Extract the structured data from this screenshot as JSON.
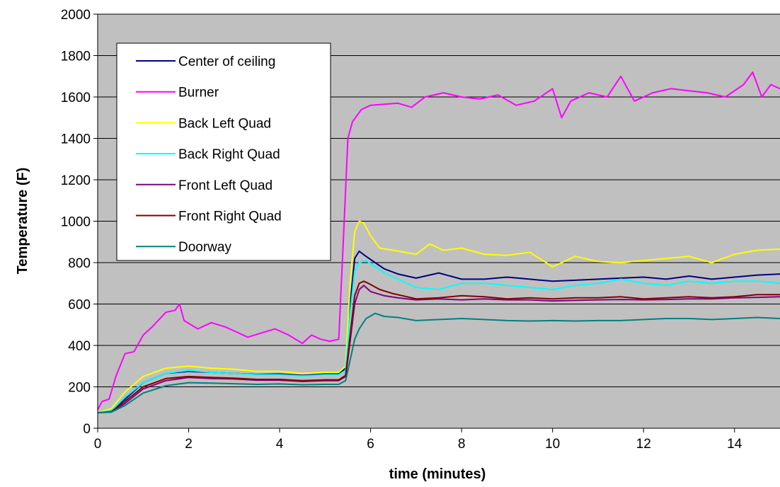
{
  "chart_data": {
    "type": "line",
    "title": "",
    "xlabel": "time (minutes)",
    "ylabel": "Temperature (F)",
    "xlim": [
      0,
      15
    ],
    "ylim": [
      0,
      2000
    ],
    "xticks": [
      "0",
      "2",
      "4",
      "6",
      "8",
      "10",
      "12",
      "14"
    ],
    "yticks": [
      "0",
      "200",
      "400",
      "600",
      "800",
      "1000",
      "1200",
      "1400",
      "1600",
      "1800",
      "2000"
    ],
    "grid": "horizontal",
    "legend_position": "top-left",
    "plot_background": "#c0c0c0",
    "series": [
      {
        "name": "Center of ceiling",
        "color": "#000080",
        "x": [
          0,
          0.3,
          0.6,
          1.0,
          1.5,
          2.0,
          2.5,
          3.0,
          3.5,
          4.0,
          4.5,
          5.0,
          5.3,
          5.45,
          5.55,
          5.65,
          5.75,
          5.9,
          6.1,
          6.3,
          6.6,
          7.0,
          7.5,
          8.0,
          8.5,
          9.0,
          9.5,
          10.0,
          10.5,
          11.0,
          11.5,
          12.0,
          12.5,
          13.0,
          13.5,
          14.0,
          14.5,
          15.0
        ],
        "y": [
          75,
          85,
          140,
          220,
          265,
          275,
          270,
          265,
          260,
          262,
          255,
          262,
          262,
          290,
          600,
          820,
          855,
          830,
          800,
          770,
          745,
          725,
          750,
          720,
          720,
          730,
          720,
          710,
          715,
          720,
          725,
          730,
          720,
          735,
          720,
          730,
          740,
          745
        ]
      },
      {
        "name": "Burner",
        "color": "#ff00ff",
        "x": [
          0,
          0.1,
          0.25,
          0.4,
          0.6,
          0.8,
          1.0,
          1.2,
          1.5,
          1.7,
          1.8,
          1.9,
          2.2,
          2.5,
          2.8,
          3.0,
          3.3,
          3.6,
          3.9,
          4.2,
          4.5,
          4.7,
          4.9,
          5.1,
          5.3,
          5.4,
          5.5,
          5.6,
          5.8,
          6.0,
          6.3,
          6.6,
          6.9,
          7.2,
          7.6,
          8.0,
          8.4,
          8.8,
          9.2,
          9.6,
          10.0,
          10.2,
          10.4,
          10.8,
          11.2,
          11.5,
          11.8,
          12.2,
          12.6,
          13.0,
          13.4,
          13.8,
          14.2,
          14.4,
          14.6,
          14.8,
          15.0
        ],
        "y": [
          90,
          130,
          140,
          250,
          360,
          370,
          450,
          490,
          560,
          570,
          600,
          520,
          480,
          510,
          490,
          470,
          440,
          460,
          480,
          450,
          410,
          450,
          430,
          420,
          430,
          900,
          1400,
          1480,
          1540,
          1560,
          1565,
          1570,
          1550,
          1600,
          1620,
          1600,
          1590,
          1610,
          1560,
          1580,
          1640,
          1500,
          1580,
          1620,
          1600,
          1700,
          1580,
          1620,
          1640,
          1630,
          1620,
          1600,
          1660,
          1720,
          1600,
          1660,
          1640
        ]
      },
      {
        "name": "Back Left Quad",
        "color": "#ffff00",
        "x": [
          0,
          0.3,
          0.6,
          1.0,
          1.5,
          2.0,
          2.5,
          3.0,
          3.5,
          4.0,
          4.5,
          5.0,
          5.3,
          5.45,
          5.55,
          5.65,
          5.75,
          5.85,
          6.0,
          6.2,
          6.5,
          7.0,
          7.3,
          7.6,
          8.0,
          8.5,
          9.0,
          9.5,
          10.0,
          10.5,
          11.0,
          11.5,
          12.0,
          12.5,
          13.0,
          13.5,
          14.0,
          14.5,
          15.0
        ],
        "y": [
          75,
          95,
          175,
          250,
          290,
          300,
          290,
          285,
          275,
          275,
          265,
          270,
          270,
          300,
          700,
          950,
          1000,
          990,
          930,
          870,
          860,
          840,
          890,
          860,
          870,
          840,
          835,
          850,
          780,
          830,
          805,
          800,
          810,
          820,
          830,
          800,
          840,
          860,
          865
        ]
      },
      {
        "name": "Back Right Quad",
        "color": "#00ffff",
        "x": [
          0,
          0.3,
          0.6,
          1.0,
          1.5,
          2.0,
          2.5,
          3.0,
          3.5,
          4.0,
          4.5,
          5.0,
          5.3,
          5.45,
          5.55,
          5.65,
          5.75,
          5.9,
          6.1,
          6.3,
          6.6,
          7.0,
          7.5,
          8.0,
          8.5,
          9.0,
          9.5,
          10.0,
          10.5,
          11.0,
          11.5,
          12.0,
          12.5,
          13.0,
          13.5,
          14.0,
          14.5,
          15.0
        ],
        "y": [
          75,
          85,
          150,
          220,
          265,
          280,
          270,
          265,
          258,
          258,
          252,
          258,
          258,
          280,
          550,
          760,
          800,
          810,
          780,
          750,
          720,
          680,
          670,
          700,
          700,
          690,
          680,
          670,
          690,
          700,
          720,
          700,
          690,
          710,
          700,
          710,
          710,
          700
        ]
      },
      {
        "name": "Front Left Quad",
        "color": "#800080",
        "x": [
          0,
          0.3,
          0.6,
          1.0,
          1.5,
          2.0,
          2.5,
          3.0,
          3.5,
          4.0,
          4.5,
          5.0,
          5.3,
          5.45,
          5.55,
          5.65,
          5.75,
          5.85,
          6.0,
          6.3,
          6.6,
          7.0,
          7.5,
          8.0,
          8.5,
          9.0,
          9.5,
          10.0,
          10.5,
          11.0,
          11.5,
          12.0,
          12.5,
          13.0,
          13.5,
          14.0,
          14.5,
          15.0
        ],
        "y": [
          75,
          80,
          120,
          190,
          230,
          245,
          240,
          238,
          232,
          232,
          226,
          230,
          230,
          250,
          420,
          600,
          670,
          690,
          660,
          640,
          630,
          620,
          625,
          620,
          625,
          620,
          620,
          615,
          618,
          620,
          622,
          620,
          622,
          625,
          625,
          630,
          632,
          635
        ]
      },
      {
        "name": "Front Right Quad",
        "color": "#800000",
        "x": [
          0,
          0.3,
          0.6,
          1.0,
          1.5,
          2.0,
          2.5,
          3.0,
          3.5,
          4.0,
          4.5,
          5.0,
          5.3,
          5.45,
          5.55,
          5.65,
          5.75,
          5.85,
          5.95,
          6.2,
          6.5,
          7.0,
          7.5,
          8.0,
          8.5,
          9.0,
          9.5,
          10.0,
          10.5,
          11.0,
          11.5,
          12.0,
          12.5,
          13.0,
          13.5,
          14.0,
          14.5,
          15.0
        ],
        "y": [
          75,
          80,
          130,
          200,
          240,
          250,
          245,
          242,
          236,
          236,
          230,
          234,
          234,
          255,
          450,
          640,
          700,
          710,
          700,
          670,
          650,
          625,
          630,
          640,
          635,
          625,
          630,
          625,
          630,
          630,
          635,
          625,
          630,
          635,
          630,
          635,
          645,
          645
        ]
      },
      {
        "name": "Doorway",
        "color": "#008080",
        "x": [
          0,
          0.3,
          0.6,
          1.0,
          1.5,
          2.0,
          2.5,
          3.0,
          3.5,
          4.0,
          4.5,
          5.0,
          5.3,
          5.45,
          5.55,
          5.65,
          5.75,
          5.9,
          6.1,
          6.3,
          6.6,
          7.0,
          7.5,
          8.0,
          8.5,
          9.0,
          9.5,
          10.0,
          10.5,
          11.0,
          11.5,
          12.0,
          12.5,
          13.0,
          13.5,
          14.0,
          14.5,
          15.0
        ],
        "y": [
          75,
          78,
          110,
          170,
          205,
          220,
          218,
          215,
          212,
          214,
          210,
          212,
          212,
          230,
          330,
          430,
          480,
          530,
          555,
          540,
          535,
          520,
          525,
          530,
          525,
          520,
          518,
          520,
          518,
          520,
          520,
          525,
          530,
          530,
          525,
          530,
          535,
          530
        ]
      }
    ]
  }
}
